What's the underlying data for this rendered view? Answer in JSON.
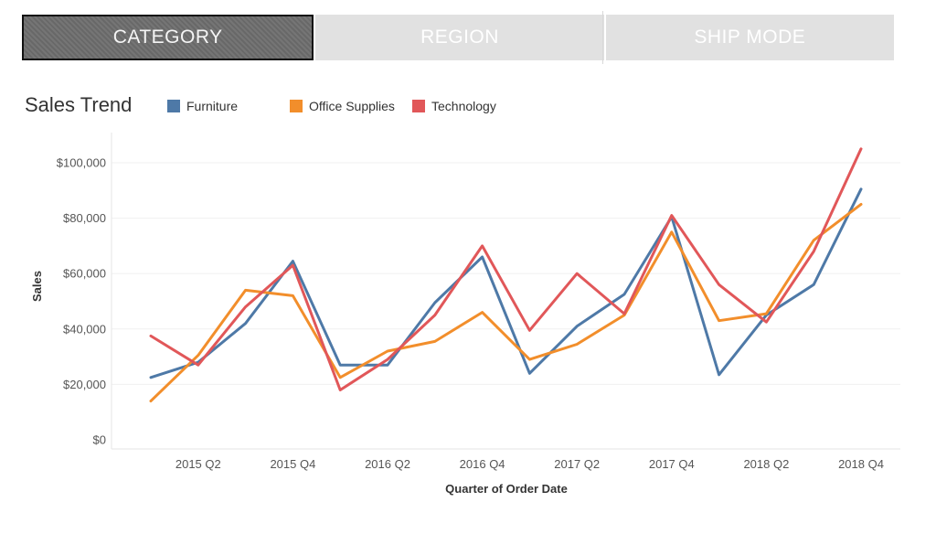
{
  "tabs": [
    {
      "label": "CATEGORY",
      "active": true
    },
    {
      "label": "REGION",
      "active": false
    },
    {
      "label": "SHIP MODE",
      "active": false
    }
  ],
  "chart_data": {
    "type": "line",
    "title": "Sales Trend",
    "xlabel": "Quarter of Order Date",
    "ylabel": "Sales",
    "x": [
      "2015 Q1",
      "2015 Q2",
      "2015 Q3",
      "2015 Q4",
      "2016 Q1",
      "2016 Q2",
      "2016 Q3",
      "2016 Q4",
      "2017 Q1",
      "2017 Q2",
      "2017 Q3",
      "2017 Q4",
      "2018 Q1",
      "2018 Q2",
      "2018 Q3",
      "2018 Q4"
    ],
    "x_tick_labels": [
      "2015 Q2",
      "2015 Q4",
      "2016 Q2",
      "2016 Q4",
      "2017 Q2",
      "2017 Q4",
      "2018 Q2",
      "2018 Q4"
    ],
    "y_ticks": [
      0,
      20000,
      40000,
      60000,
      80000,
      100000
    ],
    "y_tick_labels": [
      "$0",
      "$20,000",
      "$40,000",
      "$60,000",
      "$80,000",
      "$100,000"
    ],
    "ylim": [
      0,
      110000
    ],
    "grid": true,
    "legend": "top",
    "series": [
      {
        "name": "Furniture",
        "color": "#4e79a7",
        "values": [
          22500,
          28000,
          42000,
          64500,
          27000,
          27000,
          49500,
          66000,
          24000,
          41000,
          52500,
          80500,
          23500,
          45000,
          56000,
          90500
        ]
      },
      {
        "name": "Office Supplies",
        "color": "#f28e2b",
        "values": [
          14000,
          30500,
          54000,
          52000,
          22500,
          32000,
          35500,
          46000,
          29000,
          34500,
          45000,
          75000,
          43000,
          45500,
          72000,
          85000
        ]
      },
      {
        "name": "Technology",
        "color": "#e15759",
        "values": [
          37500,
          27000,
          48000,
          63000,
          18000,
          29000,
          45000,
          70000,
          39500,
          60000,
          45500,
          81000,
          56000,
          42500,
          68000,
          105000
        ]
      }
    ]
  }
}
